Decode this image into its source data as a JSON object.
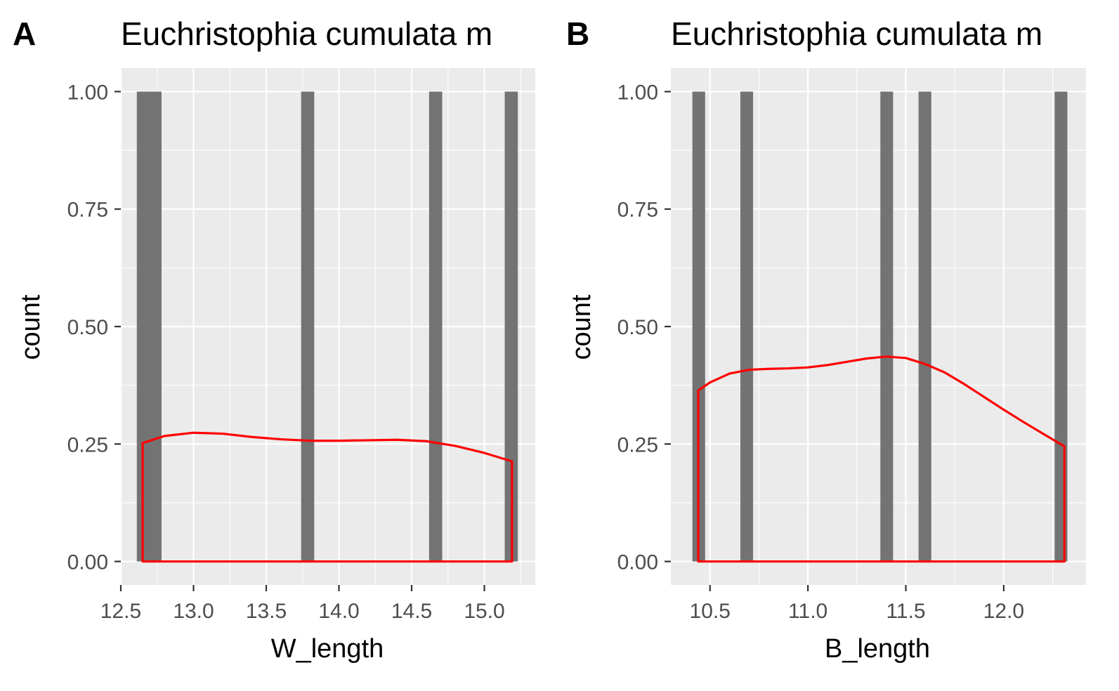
{
  "panels": [
    {
      "tag": "A",
      "title": "Euchristophia cumulata m",
      "chart_data": {
        "type": "bar",
        "title": "Euchristophia cumulata m",
        "xlabel": "W_length",
        "ylabel": "count",
        "xlim": [
          12.5,
          15.35
        ],
        "ylim": [
          -0.05,
          1.05
        ],
        "x_ticks": [
          12.5,
          13.0,
          13.5,
          14.0,
          14.5,
          15.0
        ],
        "x_tick_labels": [
          "12.5",
          "13.0",
          "13.5",
          "14.0",
          "14.5",
          "15.0"
        ],
        "y_ticks": [
          0.0,
          0.25,
          0.5,
          0.75,
          1.0
        ],
        "y_tick_labels": [
          "0.00",
          "0.25",
          "0.50",
          "0.75",
          "1.00"
        ],
        "grid": true,
        "bars": [
          {
            "x0": 12.61,
            "x1": 12.78,
            "count": 1
          },
          {
            "x0": 13.74,
            "x1": 13.83,
            "count": 1
          },
          {
            "x0": 14.62,
            "x1": 14.71,
            "count": 1
          },
          {
            "x0": 15.14,
            "x1": 15.23,
            "count": 1
          }
        ],
        "density": {
          "x": [
            12.65,
            12.8,
            13.0,
            13.2,
            13.4,
            13.6,
            13.8,
            14.0,
            14.2,
            14.4,
            14.6,
            14.8,
            15.0,
            15.19
          ],
          "y": [
            0.252,
            0.267,
            0.274,
            0.272,
            0.265,
            0.26,
            0.257,
            0.257,
            0.258,
            0.259,
            0.256,
            0.246,
            0.231,
            0.213
          ]
        },
        "colors": {
          "bar": "#737373",
          "density": "#ff0000",
          "panel": "#ebebeb",
          "grid": "#ffffff"
        }
      }
    },
    {
      "tag": "B",
      "title": "Euchristophia cumulata m",
      "chart_data": {
        "type": "bar",
        "title": "Euchristophia cumulata m",
        "xlabel": "B_length",
        "ylabel": "count",
        "xlim": [
          10.3,
          12.42
        ],
        "ylim": [
          -0.05,
          1.05
        ],
        "x_ticks": [
          10.5,
          11.0,
          11.5,
          12.0
        ],
        "x_tick_labels": [
          "10.5",
          "11.0",
          "11.5",
          "12.0"
        ],
        "y_ticks": [
          0.0,
          0.25,
          0.5,
          0.75,
          1.0
        ],
        "y_tick_labels": [
          "0.00",
          "0.25",
          "0.50",
          "0.75",
          "1.00"
        ],
        "grid": true,
        "bars": [
          {
            "x0": 10.41,
            "x1": 10.475,
            "count": 1
          },
          {
            "x0": 10.655,
            "x1": 10.72,
            "count": 1
          },
          {
            "x0": 11.37,
            "x1": 11.435,
            "count": 1
          },
          {
            "x0": 11.565,
            "x1": 11.63,
            "count": 1
          },
          {
            "x0": 12.26,
            "x1": 12.325,
            "count": 1
          }
        ],
        "density": {
          "x": [
            10.44,
            10.5,
            10.6,
            10.7,
            10.8,
            10.9,
            11.0,
            11.1,
            11.2,
            11.3,
            11.4,
            11.5,
            11.6,
            11.7,
            11.8,
            11.9,
            12.0,
            12.1,
            12.2,
            12.31
          ],
          "y": [
            0.364,
            0.381,
            0.4,
            0.408,
            0.41,
            0.411,
            0.413,
            0.418,
            0.425,
            0.432,
            0.436,
            0.433,
            0.42,
            0.402,
            0.377,
            0.35,
            0.323,
            0.297,
            0.272,
            0.245
          ]
        },
        "colors": {
          "bar": "#737373",
          "density": "#ff0000",
          "panel": "#ebebeb",
          "grid": "#ffffff"
        }
      }
    }
  ]
}
